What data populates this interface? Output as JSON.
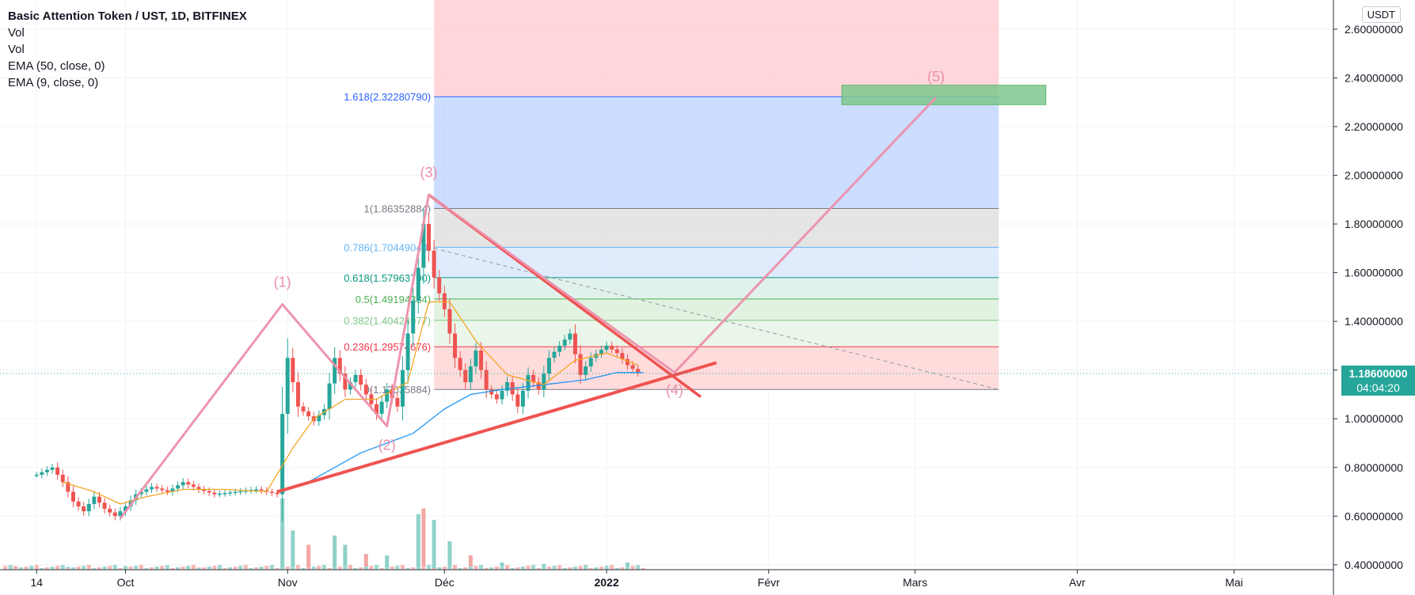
{
  "header": {
    "title": "Basic Attention Token / UST, 1D, BITFINEX",
    "indicators": [
      "Vol",
      "Vol",
      "EMA (50, close, 0)",
      "EMA (9, close, 0)"
    ]
  },
  "currency": "USDT",
  "last_price": {
    "value": "1.18600000",
    "countdown": "04:04:20",
    "y": 1.186
  },
  "colors": {
    "up": "#26a69a",
    "down": "#ef5350",
    "wave": "#ec8fab",
    "trend": "#ef5350",
    "ema50": "#2196f3",
    "ema9": "#f5a623"
  },
  "chart_data": {
    "type": "candlestick",
    "y_axis": {
      "min": 0.38,
      "max": 2.72,
      "ticks": [
        "2.60000000",
        "2.40000000",
        "2.20000000",
        "2.00000000",
        "1.80000000",
        "1.60000000",
        "1.40000000",
        "1.20000000",
        "1.00000000",
        "0.80000000",
        "0.60000000",
        "0.40000000"
      ],
      "tick_values": [
        2.6,
        2.4,
        2.2,
        2.0,
        1.8,
        1.6,
        1.4,
        1.2,
        1.0,
        0.8,
        0.6,
        0.4
      ]
    },
    "x_axis": {
      "start": "2021-09-07",
      "end": "2022-05-20",
      "labels": [
        {
          "text": "14",
          "date": "2021-09-14",
          "bold": false
        },
        {
          "text": "Oct",
          "date": "2021-10-01",
          "bold": false
        },
        {
          "text": "Nov",
          "date": "2021-11-01",
          "bold": false
        },
        {
          "text": "Déc",
          "date": "2021-12-01",
          "bold": false
        },
        {
          "text": "2022",
          "date": "2022-01-01",
          "bold": true
        },
        {
          "text": "Févr",
          "date": "2022-02-01",
          "bold": false
        },
        {
          "text": "Mars",
          "date": "2022-03-01",
          "bold": false
        },
        {
          "text": "Avr",
          "date": "2022-04-01",
          "bold": false
        },
        {
          "text": "Mai",
          "date": "2022-05-01",
          "bold": false
        }
      ]
    },
    "price_path": [
      [
        "2021-09-14",
        0.77
      ],
      [
        "2021-09-17",
        0.8
      ],
      [
        "2021-09-19",
        0.74
      ],
      [
        "2021-09-21",
        0.66
      ],
      [
        "2021-09-23",
        0.62
      ],
      [
        "2021-09-25",
        0.68
      ],
      [
        "2021-09-27",
        0.63
      ],
      [
        "2021-09-29",
        0.6
      ],
      [
        "2021-10-01",
        0.64
      ],
      [
        "2021-10-03",
        0.69
      ],
      [
        "2021-10-06",
        0.72
      ],
      [
        "2021-10-09",
        0.7
      ],
      [
        "2021-10-12",
        0.74
      ],
      [
        "2021-10-15",
        0.71
      ],
      [
        "2021-10-18",
        0.69
      ],
      [
        "2021-10-22",
        0.7
      ],
      [
        "2021-10-26",
        0.71
      ],
      [
        "2021-10-30",
        0.69
      ],
      [
        "2021-10-31",
        1.02
      ],
      [
        "2021-11-01",
        1.25
      ],
      [
        "2021-11-03",
        1.05
      ],
      [
        "2021-11-06",
        0.99
      ],
      [
        "2021-11-08",
        1.04
      ],
      [
        "2021-11-10",
        1.25
      ],
      [
        "2021-11-12",
        1.12
      ],
      [
        "2021-11-14",
        1.18
      ],
      [
        "2021-11-16",
        1.1
      ],
      [
        "2021-11-18",
        1.02
      ],
      [
        "2021-11-20",
        1.12
      ],
      [
        "2021-11-22",
        1.05
      ],
      [
        "2021-11-24",
        1.35
      ],
      [
        "2021-11-26",
        1.62
      ],
      [
        "2021-11-27",
        1.8
      ],
      [
        "2021-11-29",
        1.58
      ],
      [
        "2021-12-01",
        1.45
      ],
      [
        "2021-12-03",
        1.25
      ],
      [
        "2021-12-05",
        1.15
      ],
      [
        "2021-12-07",
        1.28
      ],
      [
        "2021-12-09",
        1.12
      ],
      [
        "2021-12-11",
        1.08
      ],
      [
        "2021-12-13",
        1.15
      ],
      [
        "2021-12-15",
        1.05
      ],
      [
        "2021-12-17",
        1.18
      ],
      [
        "2021-12-19",
        1.12
      ],
      [
        "2021-12-21",
        1.25
      ],
      [
        "2021-12-23",
        1.3
      ],
      [
        "2021-12-25",
        1.35
      ],
      [
        "2021-12-27",
        1.18
      ],
      [
        "2021-12-29",
        1.25
      ],
      [
        "2022-01-01",
        1.3
      ],
      [
        "2022-01-03",
        1.27
      ],
      [
        "2022-01-05",
        1.22
      ],
      [
        "2022-01-07",
        1.19
      ]
    ],
    "ema50": [
      [
        "2021-10-31",
        0.7
      ],
      [
        "2021-11-05",
        0.74
      ],
      [
        "2021-11-10",
        0.8
      ],
      [
        "2021-11-15",
        0.86
      ],
      [
        "2021-11-20",
        0.9
      ],
      [
        "2021-11-25",
        0.94
      ],
      [
        "2021-12-01",
        1.04
      ],
      [
        "2021-12-06",
        1.1
      ],
      [
        "2021-12-12",
        1.12
      ],
      [
        "2021-12-20",
        1.14
      ],
      [
        "2021-12-28",
        1.16
      ],
      [
        "2022-01-03",
        1.19
      ],
      [
        "2022-01-08",
        1.19
      ]
    ],
    "ema9": [
      [
        "2021-09-19",
        0.74
      ],
      [
        "2021-09-25",
        0.7
      ],
      [
        "2021-09-30",
        0.65
      ],
      [
        "2021-10-05",
        0.68
      ],
      [
        "2021-10-12",
        0.71
      ],
      [
        "2021-10-20",
        0.71
      ],
      [
        "2021-10-28",
        0.7
      ],
      [
        "2021-11-02",
        0.88
      ],
      [
        "2021-11-06",
        1.0
      ],
      [
        "2021-11-12",
        1.08
      ],
      [
        "2021-11-18",
        1.08
      ],
      [
        "2021-11-24",
        1.15
      ],
      [
        "2021-11-28",
        1.48
      ],
      [
        "2021-12-02",
        1.48
      ],
      [
        "2021-12-07",
        1.32
      ],
      [
        "2021-12-13",
        1.18
      ],
      [
        "2021-12-20",
        1.14
      ],
      [
        "2021-12-26",
        1.24
      ],
      [
        "2022-01-01",
        1.27
      ],
      [
        "2022-01-07",
        1.22
      ]
    ],
    "volume": [
      [
        "2021-09-10",
        0.05
      ],
      [
        "2021-09-20",
        0.04
      ],
      [
        "2021-10-01",
        0.05
      ],
      [
        "2021-10-15",
        0.03
      ],
      [
        "2021-10-31",
        1.0
      ],
      [
        "2021-11-02",
        0.55
      ],
      [
        "2021-11-05",
        0.35
      ],
      [
        "2021-11-10",
        0.48
      ],
      [
        "2021-11-12",
        0.35
      ],
      [
        "2021-11-16",
        0.22
      ],
      [
        "2021-11-20",
        0.2
      ],
      [
        "2021-11-26",
        0.78
      ],
      [
        "2021-11-27",
        0.86
      ],
      [
        "2021-11-29",
        0.7
      ],
      [
        "2021-12-02",
        0.4
      ],
      [
        "2021-12-06",
        0.2
      ],
      [
        "2021-12-12",
        0.1
      ],
      [
        "2021-12-20",
        0.08
      ],
      [
        "2021-12-28",
        0.07
      ],
      [
        "2022-01-05",
        0.1
      ]
    ],
    "fib_levels": [
      {
        "label": "1.618(2.32280790)",
        "value": 2.3228079,
        "color": "#2962ff"
      },
      {
        "label": "1(1.86352884)",
        "value": 1.86352884,
        "color": "#787b86"
      },
      {
        "label": "0.786(1.70449040)",
        "value": 1.7044904,
        "color": "#64b5f6"
      },
      {
        "label": "0.618(1.57963790)",
        "value": 1.5796379,
        "color": "#089981"
      },
      {
        "label": "0.5(1.49194384)",
        "value": 1.49194384,
        "color": "#4caf50"
      },
      {
        "label": "0.382(1.40424977)",
        "value": 1.40424977,
        "color": "#81c784"
      },
      {
        "label": "0.236(1.29574676)",
        "value": 1.29574676,
        "color": "#f23645"
      },
      {
        "label": "0(1.12035884)",
        "value": 1.12035884,
        "color": "#787b86"
      }
    ],
    "fib_range": {
      "start": "2021-11-29",
      "end": "2022-03-17"
    },
    "waves": [
      {
        "label": "(1)",
        "date": "2021-10-31",
        "value": 1.47
      },
      {
        "label": "(2)",
        "date": "2021-11-20",
        "value": 0.97
      },
      {
        "label": "(3)",
        "date": "2021-11-28",
        "value": 1.92
      },
      {
        "label": "(4)",
        "date": "2022-01-14",
        "value": 1.19
      },
      {
        "label": "(5)",
        "date": "2022-03-05",
        "value": 2.32
      }
    ],
    "wave_start": {
      "date": "2021-09-30",
      "value": 0.59
    },
    "target_zone": {
      "start": "2022-02-15",
      "end": "2022-03-26",
      "high": 2.37,
      "low": 2.29
    }
  }
}
